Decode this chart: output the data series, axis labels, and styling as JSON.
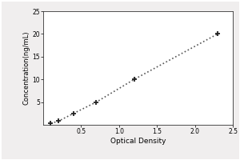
{
  "x_data": [
    0.1,
    0.2,
    0.4,
    0.7,
    1.2,
    2.3
  ],
  "y_data": [
    0.3,
    0.8,
    2.5,
    5.0,
    10.0,
    20.0
  ],
  "xlabel": "Optical Density",
  "ylabel": "Concentration(ng/mL)",
  "xlim": [
    0,
    2.5
  ],
  "ylim": [
    0,
    25
  ],
  "xticks": [
    0.5,
    1.0,
    1.5,
    2.0,
    2.5
  ],
  "yticks": [
    5,
    10,
    15,
    20,
    25
  ],
  "line_color": "#555555",
  "marker_color": "#222222",
  "background_color": "#f0eeee",
  "plot_bg_color": "#ffffff",
  "line_style": ":",
  "xlabel_fontsize": 6.5,
  "ylabel_fontsize": 6,
  "tick_fontsize": 5.5,
  "line_width": 1.2,
  "marker_size": 5
}
